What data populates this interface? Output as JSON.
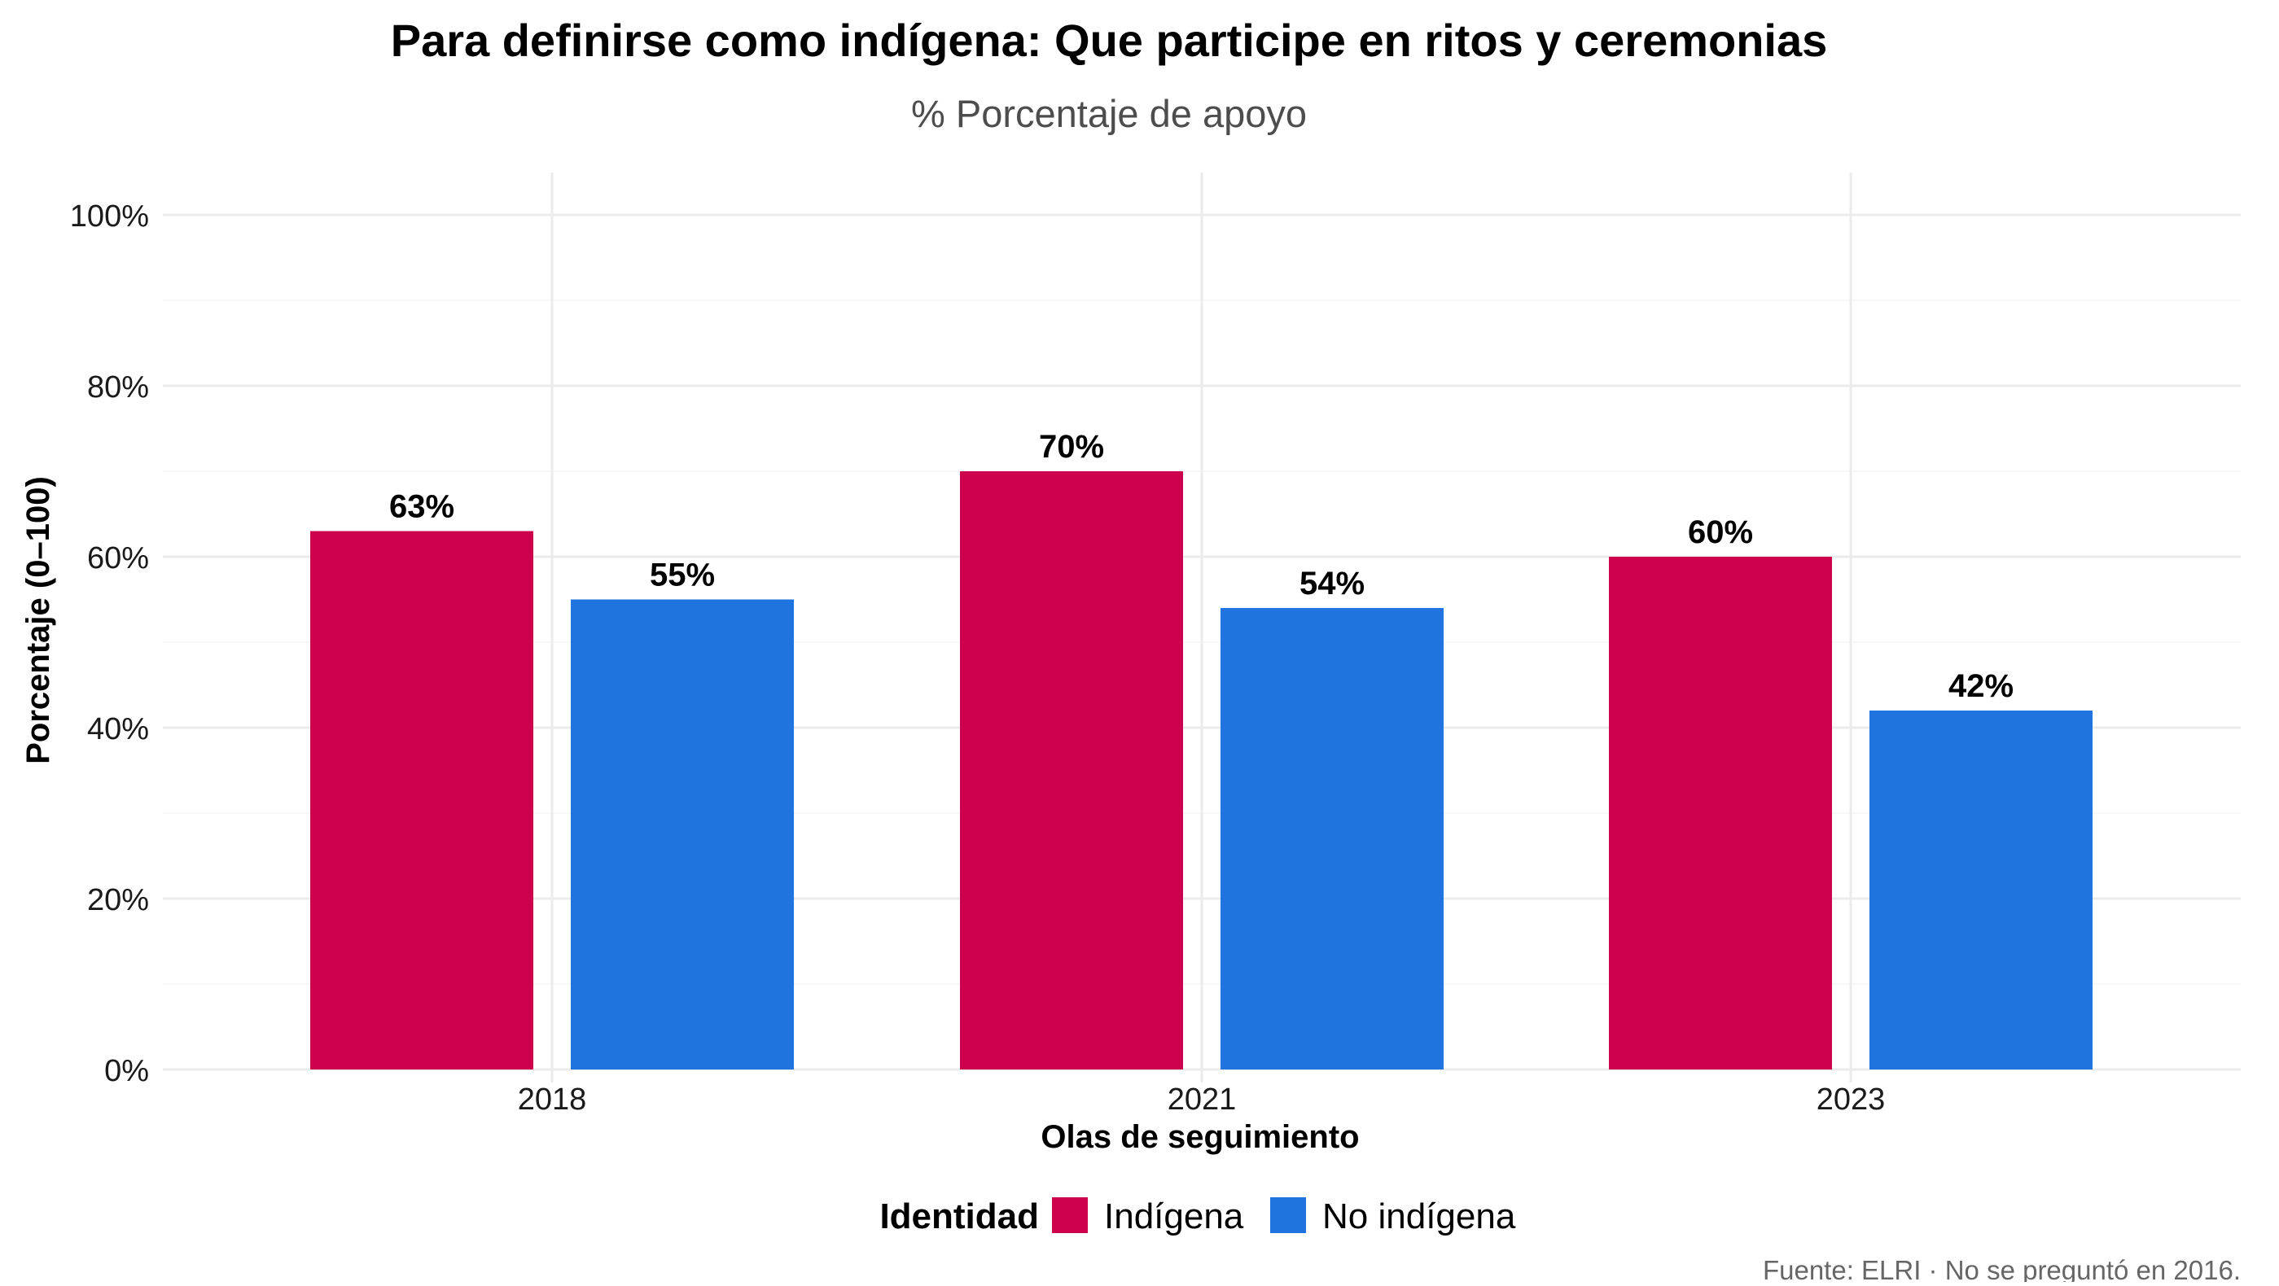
{
  "chart_data": {
    "type": "bar",
    "title": "Para definirse como indígena: Que participe en ritos y ceremonias",
    "subtitle": "% Porcentaje de apoyo",
    "xlabel": "Olas de seguimiento",
    "ylabel": "Porcentaje (0–100)",
    "caption": "Fuente: ELRI · No se preguntó en 2016.",
    "categories": [
      "2018",
      "2021",
      "2023"
    ],
    "ylim": [
      0,
      100
    ],
    "yticks": [
      0,
      20,
      40,
      60,
      80,
      100
    ],
    "ytick_labels": [
      "0%",
      "20%",
      "40%",
      "60%",
      "80%",
      "100%"
    ],
    "grid": true,
    "legend": {
      "title": "Identidad",
      "position": "bottom"
    },
    "series": [
      {
        "name": "Indígena",
        "color": "#CC004C",
        "values": [
          63,
          70,
          60
        ],
        "labels": [
          "63%",
          "70%",
          "60%"
        ]
      },
      {
        "name": "No indígena",
        "color": "#1F74DF",
        "values": [
          55,
          54,
          42
        ],
        "labels": [
          "55%",
          "54%",
          "42%"
        ]
      }
    ]
  }
}
